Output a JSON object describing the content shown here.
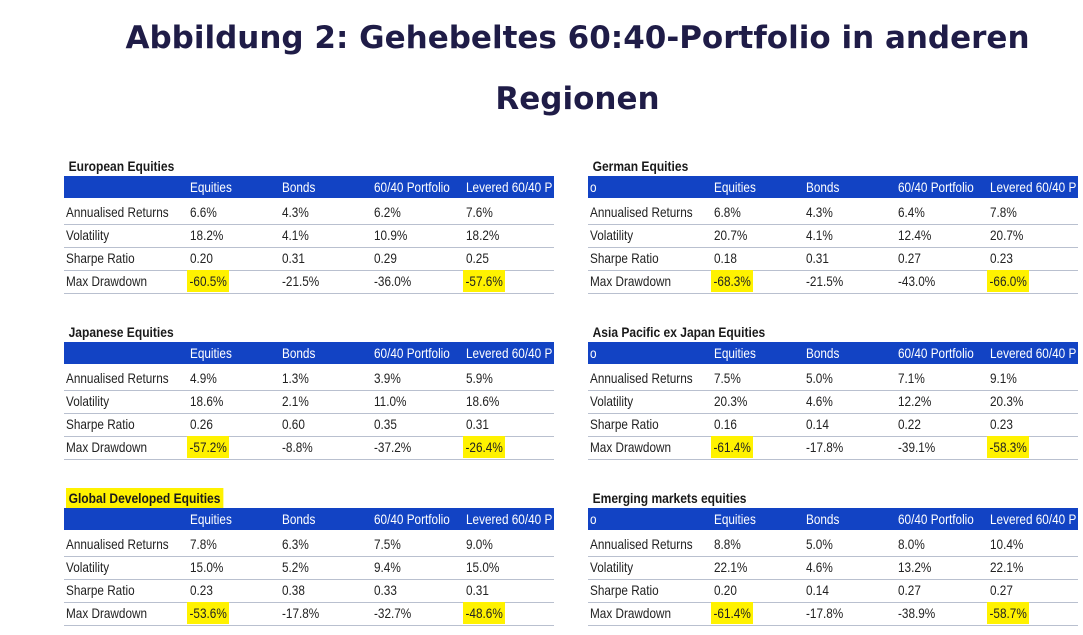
{
  "page": {
    "title_line1": "Abbildung 2: Gehebeltes 60:40-Portfolio in anderen",
    "title_line2": "Regionen"
  },
  "columns": [
    "Equities",
    "Bonds",
    "60/40 Portfolio",
    "Levered 60/40 P"
  ],
  "right_header_lead": "o",
  "row_labels": [
    "Annualised Returns",
    "Volatility",
    "Sharpe Ratio",
    "Max Drawdown"
  ],
  "tables": [
    {
      "title": "European Equities",
      "rows": [
        [
          "6.6%",
          "4.3%",
          "6.2%",
          "7.6%"
        ],
        [
          "18.2%",
          "4.1%",
          "10.9%",
          "18.2%"
        ],
        [
          "0.20",
          "0.31",
          "0.29",
          "0.25"
        ],
        [
          "-60.5%",
          "-21.5%",
          "-36.0%",
          "-57.6%"
        ]
      ]
    },
    {
      "title": "German Equities",
      "rows": [
        [
          "6.8%",
          "4.3%",
          "6.4%",
          "7.8%"
        ],
        [
          "20.7%",
          "4.1%",
          "12.4%",
          "20.7%"
        ],
        [
          "0.18",
          "0.31",
          "0.27",
          "0.23"
        ],
        [
          "-68.3%",
          "-21.5%",
          "-43.0%",
          "-66.0%"
        ]
      ]
    },
    {
      "title": "Japanese Equities",
      "rows": [
        [
          "4.9%",
          "1.3%",
          "3.9%",
          "5.9%"
        ],
        [
          "18.6%",
          "2.1%",
          "11.0%",
          "18.6%"
        ],
        [
          "0.26",
          "0.60",
          "0.35",
          "0.31"
        ],
        [
          "-57.2%",
          "-8.8%",
          "-37.2%",
          "-26.4%"
        ]
      ]
    },
    {
      "title": "Asia Pacific ex Japan Equities",
      "rows": [
        [
          "7.5%",
          "5.0%",
          "7.1%",
          "9.1%"
        ],
        [
          "20.3%",
          "4.6%",
          "12.2%",
          "20.3%"
        ],
        [
          "0.16",
          "0.14",
          "0.22",
          "0.23"
        ],
        [
          "-61.4%",
          "-17.8%",
          "-39.1%",
          "-58.3%"
        ]
      ]
    },
    {
      "title": "Global Developed Equities",
      "rows": [
        [
          "7.8%",
          "6.3%",
          "7.5%",
          "9.0%"
        ],
        [
          "15.0%",
          "5.2%",
          "9.4%",
          "15.0%"
        ],
        [
          "0.23",
          "0.38",
          "0.33",
          "0.31"
        ],
        [
          "-53.6%",
          "-17.8%",
          "-32.7%",
          "-48.6%"
        ]
      ]
    },
    {
      "title": "Emerging markets equities",
      "rows": [
        [
          "8.8%",
          "5.0%",
          "8.0%",
          "10.4%"
        ],
        [
          "22.1%",
          "4.6%",
          "13.2%",
          "22.1%"
        ],
        [
          "0.20",
          "0.14",
          "0.27",
          "0.27"
        ],
        [
          "-61.4%",
          "-17.8%",
          "-38.9%",
          "-58.7%"
        ]
      ]
    }
  ],
  "colors": {
    "header_bg": "#1243c4",
    "highlight": "#fff200",
    "title": "#1f1c47"
  }
}
